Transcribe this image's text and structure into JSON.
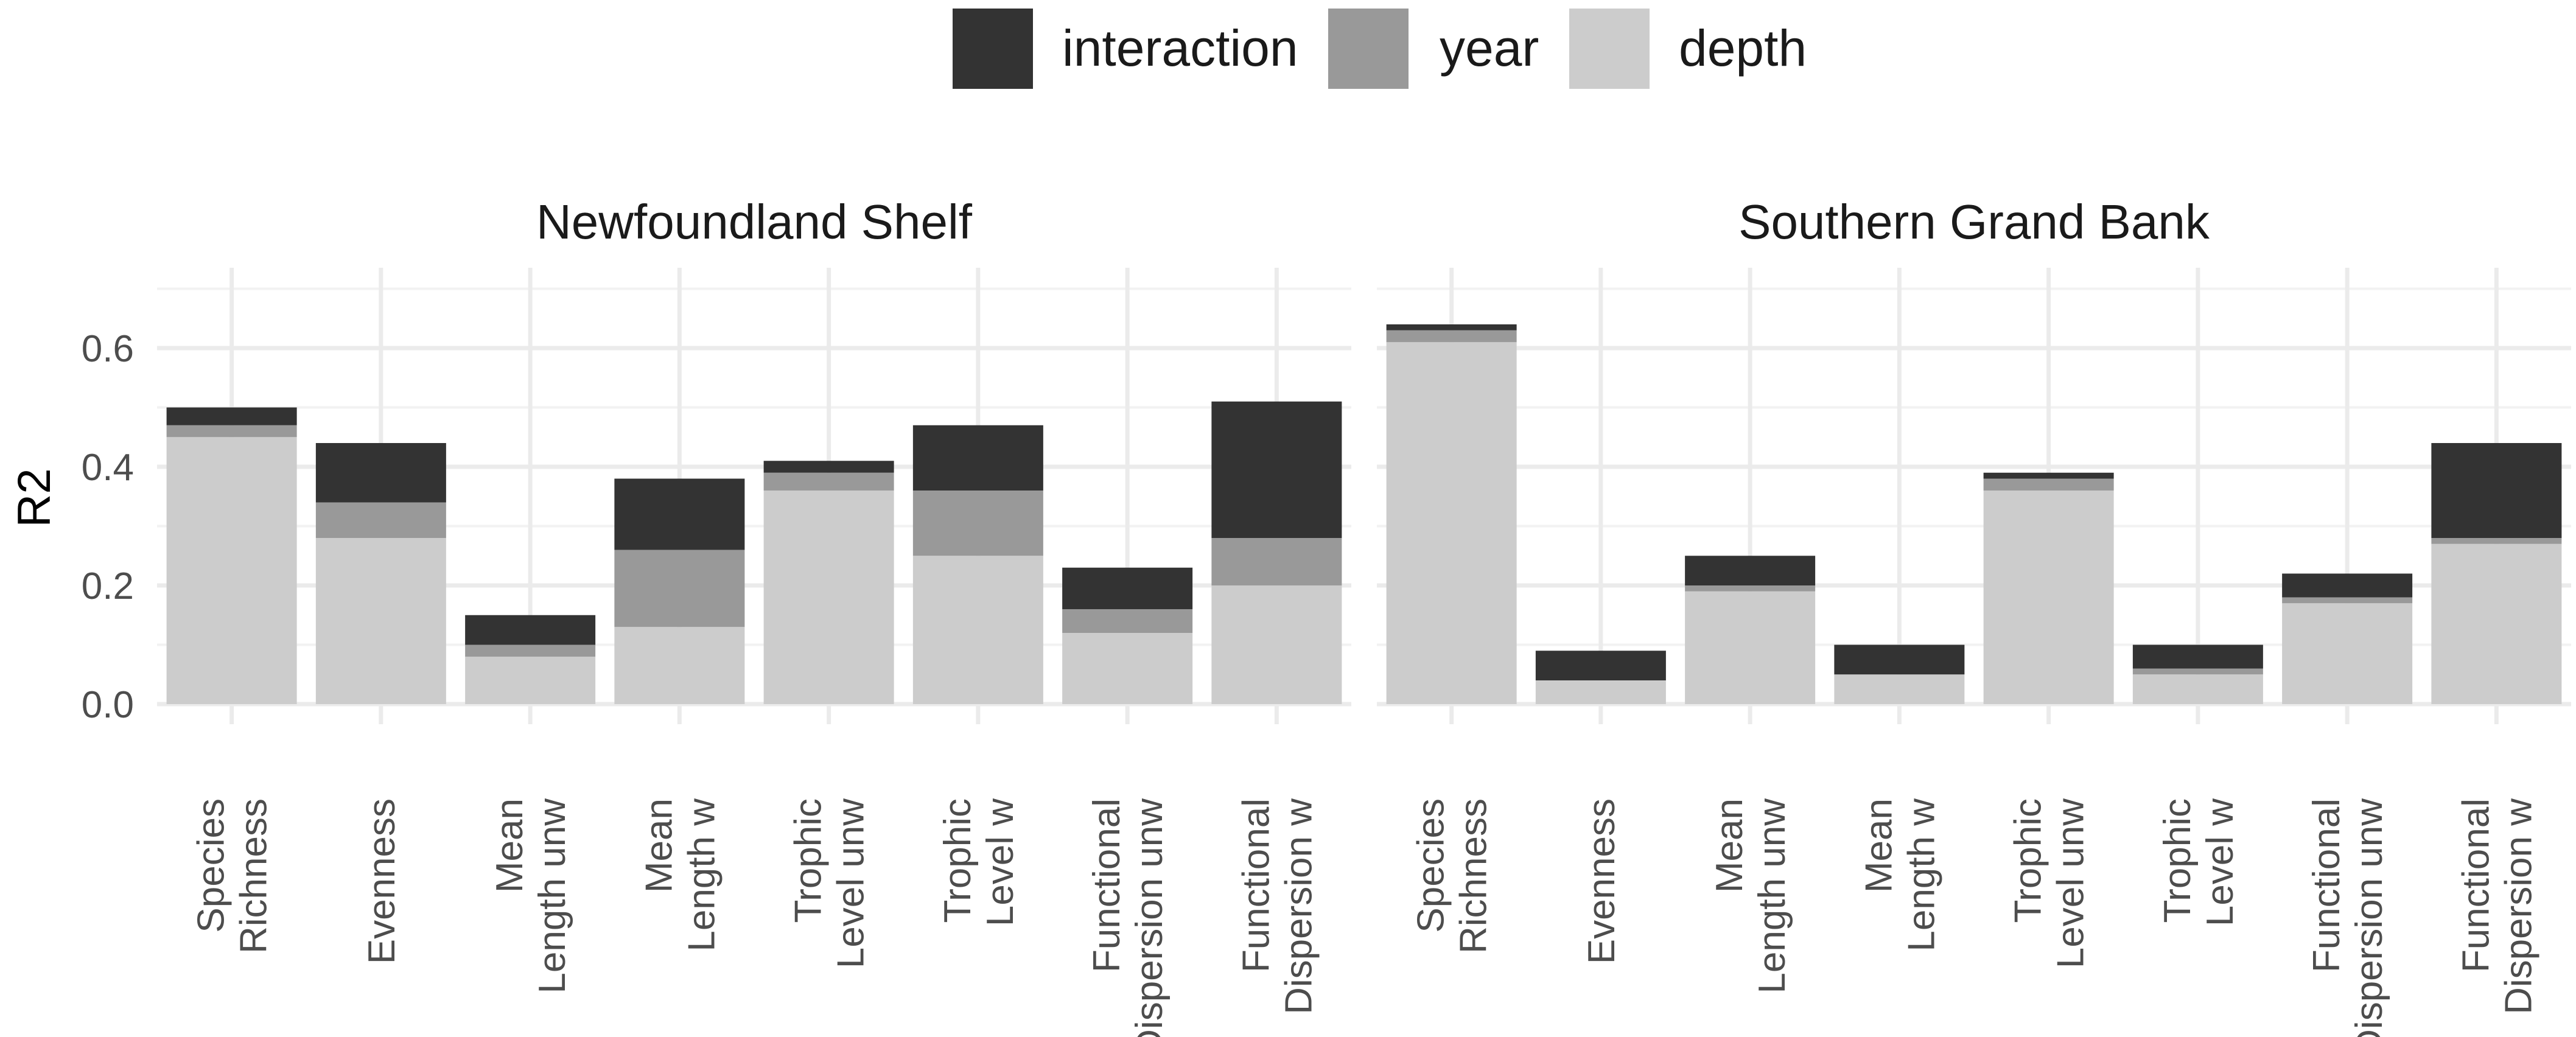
{
  "chart_data": {
    "type": "bar",
    "stacked": true,
    "ylabel": "R2",
    "xlabel": "",
    "ylim": [
      0,
      0.72
    ],
    "yticks": [
      0.0,
      0.2,
      0.4,
      0.6
    ],
    "ytick_labels": [
      "0.0",
      "0.2",
      "0.4",
      "0.6"
    ],
    "grid": true,
    "legend": {
      "position": "top",
      "entries": [
        {
          "name": "interaction",
          "color": "#333333"
        },
        {
          "name": "year",
          "color": "#999999"
        },
        {
          "name": "depth",
          "color": "#cccccc"
        }
      ]
    },
    "categories": [
      [
        "Species",
        "Richness"
      ],
      [
        "Evenness"
      ],
      [
        "Mean",
        "Length unw"
      ],
      [
        "Mean",
        "Length w"
      ],
      [
        "Trophic",
        "Level unw"
      ],
      [
        "Trophic",
        "Level w"
      ],
      [
        "Functional",
        "Dispersion unw"
      ],
      [
        "Functional",
        "Dispersion w"
      ]
    ],
    "panels": [
      {
        "title": "Newfoundland Shelf",
        "series": [
          {
            "name": "depth",
            "values": [
              0.45,
              0.28,
              0.08,
              0.13,
              0.36,
              0.25,
              0.12,
              0.2
            ]
          },
          {
            "name": "year",
            "values": [
              0.02,
              0.06,
              0.02,
              0.13,
              0.03,
              0.11,
              0.04,
              0.08
            ]
          },
          {
            "name": "interaction",
            "values": [
              0.03,
              0.1,
              0.05,
              0.12,
              0.02,
              0.11,
              0.07,
              0.23
            ]
          }
        ]
      },
      {
        "title": "Southern Grand Bank",
        "series": [
          {
            "name": "depth",
            "values": [
              0.61,
              0.04,
              0.19,
              0.05,
              0.36,
              0.05,
              0.17,
              0.27
            ]
          },
          {
            "name": "year",
            "values": [
              0.02,
              0.0,
              0.01,
              0.0,
              0.02,
              0.01,
              0.01,
              0.01
            ]
          },
          {
            "name": "interaction",
            "values": [
              0.01,
              0.05,
              0.05,
              0.05,
              0.01,
              0.04,
              0.04,
              0.16
            ]
          }
        ]
      }
    ]
  }
}
